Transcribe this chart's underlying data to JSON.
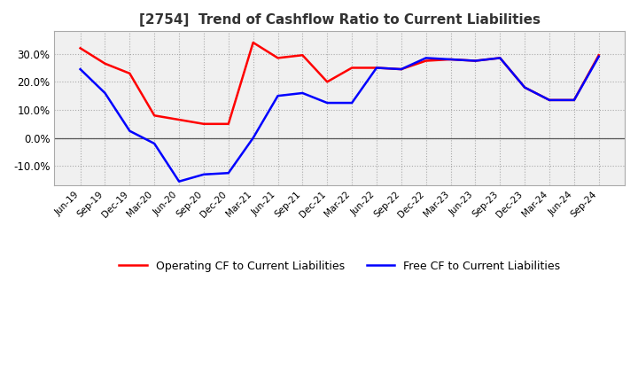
{
  "title": "[2754]  Trend of Cashflow Ratio to Current Liabilities",
  "title_fontsize": 11,
  "ylim": [
    -17,
    38
  ],
  "yticks": [
    -10.0,
    0.0,
    10.0,
    20.0,
    30.0
  ],
  "background_color": "#ffffff",
  "plot_bg_color": "#f0f0f0",
  "grid_color": "#aaaaaa",
  "x_labels": [
    "Jun-19",
    "Sep-19",
    "Dec-19",
    "Mar-20",
    "Jun-20",
    "Sep-20",
    "Dec-20",
    "Mar-21",
    "Jun-21",
    "Sep-21",
    "Dec-21",
    "Mar-22",
    "Jun-22",
    "Sep-22",
    "Dec-22",
    "Mar-23",
    "Jun-23",
    "Sep-23",
    "Dec-23",
    "Mar-24",
    "Jun-24",
    "Sep-24"
  ],
  "operating_cf": [
    32.0,
    26.5,
    23.0,
    8.0,
    6.5,
    5.0,
    5.0,
    34.0,
    28.5,
    29.5,
    20.0,
    25.0,
    25.0,
    24.5,
    27.5,
    28.0,
    27.5,
    28.5,
    18.0,
    13.5,
    13.5,
    29.5
  ],
  "free_cf": [
    24.5,
    16.0,
    2.5,
    -2.0,
    -15.5,
    -13.0,
    -12.5,
    0.0,
    15.0,
    16.0,
    12.5,
    12.5,
    25.0,
    24.5,
    28.5,
    28.0,
    27.5,
    28.5,
    18.0,
    13.5,
    13.5,
    29.0
  ],
  "operating_color": "#ff0000",
  "free_color": "#0000ff",
  "line_width": 1.8,
  "zero_line_color": "#555555"
}
